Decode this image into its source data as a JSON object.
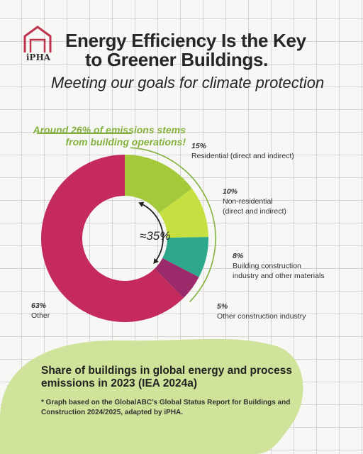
{
  "brand": {
    "logo_text": "iPHA",
    "logo_color": "#c0334d"
  },
  "header": {
    "title_line1": "Energy Efficiency Is the Key",
    "title_line2": "to Greener Buildings.",
    "subtitle": "Meeting our goals for climate protection"
  },
  "callout": {
    "line1": "Around 26% of emissions stems",
    "line2": "from building operations!",
    "color": "#84b13e"
  },
  "chart_data": {
    "type": "pie",
    "donut": true,
    "center_label": "≈35%",
    "slices": [
      {
        "pct": "15%",
        "label": "Residential (direct and indirect)",
        "value": 15,
        "color": "#a4c93a"
      },
      {
        "pct": "10%",
        "label": "Non-residential (direct and indirect)",
        "value": 10,
        "color": "#c6e042"
      },
      {
        "pct": "8%",
        "label": "Building construction industry and other materials",
        "value": 8,
        "color": "#2ea88c"
      },
      {
        "pct": "5%",
        "label": "Other construction industry",
        "value": 5,
        "color": "#9b2a6b"
      },
      {
        "pct": "63%",
        "label": "Other",
        "value": 63,
        "color": "#c42a5c"
      }
    ],
    "labels": {
      "residential": {
        "pct": "15%",
        "text": "Residential (direct and indirect)"
      },
      "nonresidential": {
        "pct": "10%",
        "line1": "Non-residential",
        "line2": "(direct and indirect)"
      },
      "construction": {
        "pct": "8%",
        "line1": "Building construction",
        "line2": "industry and other materials"
      },
      "other_construction": {
        "pct": "5%",
        "text": "Other construction industry"
      },
      "other": {
        "pct": "63%",
        "text": "Other"
      }
    }
  },
  "footer": {
    "share_title": "Share of buildings in global energy and process emissions in 2023 (IEA 2024a)",
    "footnote": "* Graph based on the GlobalABC’s Global Status Report for Buildings and Construction 2024/2025, adapted by iPHA.",
    "blob_color": "#cfe39a"
  }
}
